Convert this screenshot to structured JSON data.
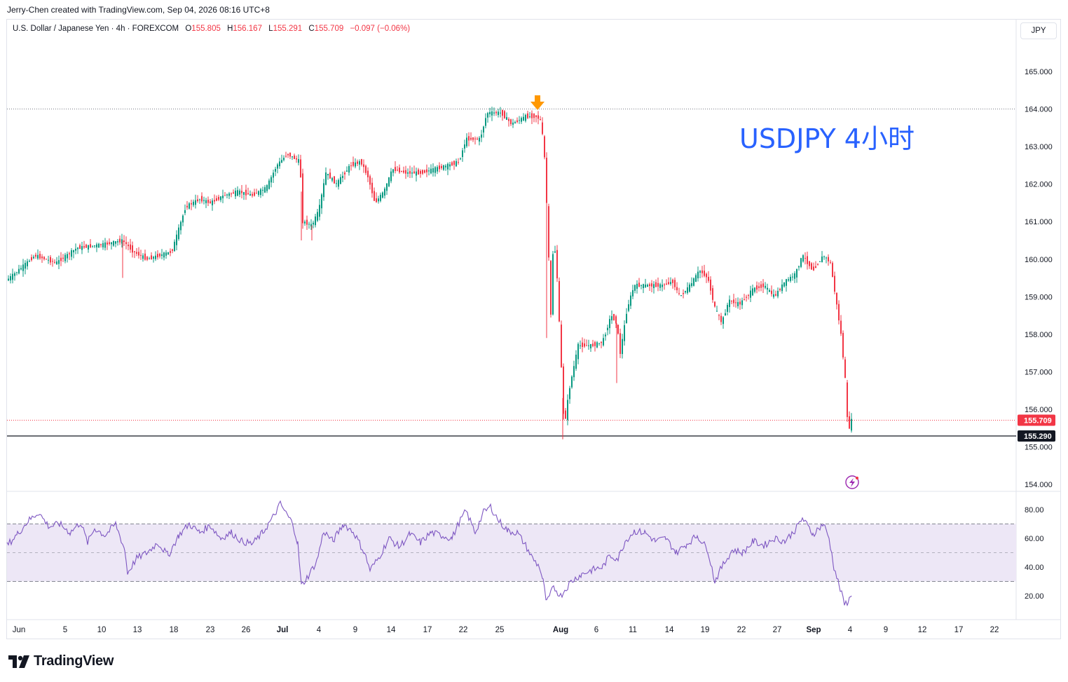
{
  "header": {
    "credit": "Jerry-Chen created with TradingView.com, Sep 04, 2026 08:16 UTC+8"
  },
  "legend": {
    "symbol": "U.S. Dollar / Japanese Yen · 4h · FOREXCOM",
    "open_label": "O",
    "open": "155.805",
    "high_label": "H",
    "high": "156.167",
    "low_label": "L",
    "low": "155.291",
    "close_label": "C",
    "close": "155.709",
    "change": "−0.097 (−0.06%)"
  },
  "currency_button": "JPY",
  "annotation": "USDJPY 4小时",
  "footer": {
    "brand": "TradingView"
  },
  "colors": {
    "up": "#089981",
    "down": "#f23645",
    "rsi_line": "#7e57c2",
    "rsi_band": "#ede7f6",
    "annotation": "#2962ff",
    "arrow": "#ff9800"
  },
  "chart_data": {
    "type": "candlestick",
    "symbol": "USDJPY",
    "timeframe": "4h",
    "price_axis": {
      "ticks": [
        "165.000",
        "164.000",
        "163.000",
        "162.000",
        "161.000",
        "160.000",
        "159.000",
        "158.000",
        "157.000",
        "156.000",
        "155.000",
        "154.000"
      ],
      "range": [
        153.8,
        165.9
      ]
    },
    "price_labels": [
      {
        "text": "155.709",
        "value": 155.709,
        "style": "red"
      },
      {
        "text": "155.290",
        "value": 155.29,
        "style": "black"
      }
    ],
    "horizontal_lines": [
      {
        "value": 164.0,
        "style": "dotted"
      },
      {
        "value": 155.29,
        "style": "solid"
      },
      {
        "value": 155.709,
        "style": "dotted-red"
      }
    ],
    "time_axis": {
      "ticks": [
        "Jun",
        "5",
        "10",
        "13",
        "18",
        "23",
        "26",
        "Jul",
        "4",
        "9",
        "14",
        "17",
        "22",
        "25",
        "Aug",
        "6",
        "11",
        "14",
        "19",
        "22",
        "27",
        "Sep",
        "4",
        "9",
        "12",
        "17",
        "22"
      ],
      "bold": [
        "Jul",
        "Aug",
        "Sep"
      ]
    },
    "price_path": [
      [
        0,
        159.3
      ],
      [
        20,
        159.6
      ],
      [
        50,
        160.1
      ],
      [
        80,
        159.9
      ],
      [
        110,
        160.3
      ],
      [
        150,
        160.4
      ],
      [
        175,
        160.5
      ],
      [
        190,
        160.2
      ],
      [
        210,
        160.0
      ],
      [
        245,
        160.2
      ],
      [
        255,
        160.8
      ],
      [
        265,
        161.4
      ],
      [
        285,
        161.6
      ],
      [
        300,
        161.5
      ],
      [
        320,
        161.7
      ],
      [
        340,
        161.8
      ],
      [
        360,
        161.7
      ],
      [
        380,
        161.9
      ],
      [
        395,
        162.5
      ],
      [
        410,
        162.8
      ],
      [
        428,
        162.6
      ],
      [
        432,
        161.0
      ],
      [
        445,
        160.9
      ],
      [
        455,
        161.3
      ],
      [
        465,
        162.3
      ],
      [
        480,
        162.0
      ],
      [
        500,
        162.5
      ],
      [
        515,
        162.6
      ],
      [
        525,
        162.2
      ],
      [
        535,
        161.5
      ],
      [
        548,
        161.8
      ],
      [
        560,
        162.4
      ],
      [
        580,
        162.3
      ],
      [
        600,
        162.3
      ],
      [
        620,
        162.4
      ],
      [
        640,
        162.5
      ],
      [
        655,
        162.6
      ],
      [
        665,
        163.2
      ],
      [
        685,
        163.2
      ],
      [
        695,
        163.9
      ],
      [
        715,
        163.9
      ],
      [
        730,
        163.6
      ],
      [
        750,
        163.8
      ],
      [
        765,
        163.8
      ],
      [
        772,
        163.7
      ],
      [
        778,
        162.5
      ],
      [
        782,
        160.5
      ],
      [
        786,
        158.5
      ],
      [
        790,
        160.7
      ],
      [
        795,
        159.5
      ],
      [
        800,
        157.5
      ],
      [
        805,
        155.5
      ],
      [
        812,
        156.5
      ],
      [
        825,
        157.7
      ],
      [
        845,
        157.7
      ],
      [
        860,
        157.8
      ],
      [
        872,
        158.5
      ],
      [
        880,
        158.3
      ],
      [
        885,
        157.5
      ],
      [
        895,
        158.7
      ],
      [
        905,
        159.3
      ],
      [
        925,
        159.3
      ],
      [
        945,
        159.3
      ],
      [
        960,
        159.4
      ],
      [
        970,
        159.0
      ],
      [
        985,
        159.3
      ],
      [
        998,
        159.7
      ],
      [
        1010,
        159.5
      ],
      [
        1020,
        158.7
      ],
      [
        1030,
        158.3
      ],
      [
        1040,
        158.9
      ],
      [
        1055,
        158.8
      ],
      [
        1075,
        159.2
      ],
      [
        1090,
        159.3
      ],
      [
        1105,
        159.0
      ],
      [
        1120,
        159.4
      ],
      [
        1135,
        159.6
      ],
      [
        1145,
        160.1
      ],
      [
        1160,
        159.7
      ],
      [
        1175,
        160.1
      ],
      [
        1185,
        159.9
      ],
      [
        1193,
        158.9
      ],
      [
        1200,
        158.0
      ],
      [
        1206,
        156.8
      ],
      [
        1210,
        155.4
      ],
      [
        1215,
        155.7
      ]
    ],
    "up_spikes": [
      [
        175,
        159.5
      ],
      [
        430,
        160.5
      ],
      [
        445,
        160.5
      ],
      [
        780,
        157.9
      ],
      [
        803,
        155.2
      ],
      [
        880,
        156.7
      ]
    ],
    "current_price": 155.709,
    "low_marker": 155.29,
    "rsi": {
      "axis_ticks": [
        "80.00",
        "60.00",
        "40.00",
        "20.00"
      ],
      "range": [
        0,
        100
      ],
      "band": [
        30,
        70
      ],
      "mid": 50,
      "path": [
        [
          10,
          55
        ],
        [
          25,
          63
        ],
        [
          40,
          72
        ],
        [
          55,
          78
        ],
        [
          70,
          68
        ],
        [
          85,
          70
        ],
        [
          100,
          64
        ],
        [
          115,
          71
        ],
        [
          125,
          57
        ],
        [
          135,
          67
        ],
        [
          150,
          62
        ],
        [
          165,
          70
        ],
        [
          178,
          52
        ],
        [
          182,
          36
        ],
        [
          195,
          46
        ],
        [
          210,
          50
        ],
        [
          225,
          57
        ],
        [
          240,
          48
        ],
        [
          255,
          62
        ],
        [
          270,
          70
        ],
        [
          285,
          64
        ],
        [
          300,
          69
        ],
        [
          315,
          60
        ],
        [
          330,
          64
        ],
        [
          345,
          58
        ],
        [
          360,
          56
        ],
        [
          375,
          64
        ],
        [
          390,
          75
        ],
        [
          400,
          84
        ],
        [
          410,
          76
        ],
        [
          418,
          70
        ],
        [
          425,
          56
        ],
        [
          430,
          27
        ],
        [
          440,
          34
        ],
        [
          452,
          44
        ],
        [
          462,
          65
        ],
        [
          475,
          58
        ],
        [
          490,
          70
        ],
        [
          505,
          64
        ],
        [
          520,
          50
        ],
        [
          528,
          38
        ],
        [
          540,
          46
        ],
        [
          555,
          60
        ],
        [
          570,
          54
        ],
        [
          585,
          63
        ],
        [
          600,
          57
        ],
        [
          615,
          64
        ],
        [
          630,
          62
        ],
        [
          645,
          60
        ],
        [
          655,
          71
        ],
        [
          665,
          79
        ],
        [
          678,
          64
        ],
        [
          690,
          78
        ],
        [
          700,
          82
        ],
        [
          712,
          72
        ],
        [
          725,
          65
        ],
        [
          738,
          64
        ],
        [
          750,
          55
        ],
        [
          760,
          46
        ],
        [
          770,
          40
        ],
        [
          775,
          30
        ],
        [
          780,
          15
        ],
        [
          790,
          26
        ],
        [
          800,
          20
        ],
        [
          815,
          30
        ],
        [
          830,
          35
        ],
        [
          845,
          38
        ],
        [
          860,
          40
        ],
        [
          870,
          48
        ],
        [
          882,
          46
        ],
        [
          892,
          58
        ],
        [
          905,
          65
        ],
        [
          920,
          64
        ],
        [
          935,
          58
        ],
        [
          950,
          60
        ],
        [
          965,
          50
        ],
        [
          980,
          56
        ],
        [
          995,
          62
        ],
        [
          1010,
          52
        ],
        [
          1020,
          30
        ],
        [
          1030,
          40
        ],
        [
          1045,
          52
        ],
        [
          1060,
          50
        ],
        [
          1075,
          58
        ],
        [
          1090,
          55
        ],
        [
          1105,
          60
        ],
        [
          1120,
          58
        ],
        [
          1135,
          66
        ],
        [
          1145,
          74
        ],
        [
          1160,
          63
        ],
        [
          1175,
          70
        ],
        [
          1183,
          60
        ],
        [
          1190,
          40
        ],
        [
          1197,
          28
        ],
        [
          1205,
          14
        ],
        [
          1210,
          16
        ],
        [
          1215,
          20
        ]
      ]
    }
  }
}
